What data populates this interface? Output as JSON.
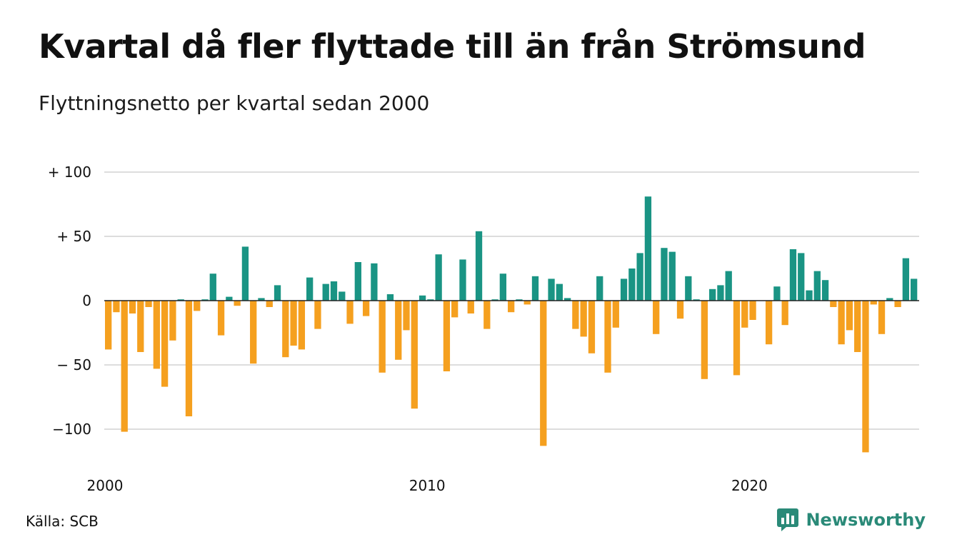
{
  "title": "Kvartal då fler flyttade till än från Strömsund",
  "subtitle": "Flyttningsnetto per kvartal sedan 2000",
  "source": "Källa: SCB",
  "brand": {
    "name": "Newsworthy",
    "icon": "newsworthy-logo-icon"
  },
  "colors": {
    "positive": "#1a9484",
    "negative": "#f5a01f",
    "grid": "#dddddd",
    "zero_line": "#222222"
  },
  "chart_data": {
    "type": "bar",
    "title": "Kvartal då fler flyttade till än från Strömsund",
    "subtitle": "Flyttningsnetto per kvartal sedan 2000",
    "ylim": [
      -120,
      100
    ],
    "yticks": [
      {
        "value": 100,
        "label": "+ 100"
      },
      {
        "value": 50,
        "label": "+  50"
      },
      {
        "value": 0,
        "label": "0"
      },
      {
        "value": -50,
        "label": "− 50"
      },
      {
        "value": -100,
        "label": "−100"
      }
    ],
    "xticks": [
      {
        "index": 0,
        "label": "2000"
      },
      {
        "index": 40,
        "label": "2010"
      },
      {
        "index": 80,
        "label": "2020"
      }
    ],
    "grid": true,
    "start": "2000 Q1",
    "values": [
      -38,
      -9,
      -102,
      -10,
      -40,
      -5,
      -53,
      -67,
      -31,
      1,
      -90,
      -8,
      1,
      21,
      -27,
      3,
      -4,
      42,
      -49,
      2,
      -5,
      12,
      -44,
      -35,
      -38,
      18,
      -22,
      13,
      15,
      7,
      -18,
      30,
      -12,
      29,
      -56,
      5,
      -46,
      -23,
      -84,
      4,
      1,
      36,
      -55,
      -13,
      32,
      -10,
      54,
      -22,
      1,
      21,
      -9,
      1,
      -3,
      19,
      -113,
      17,
      13,
      2,
      -22,
      -28,
      -41,
      19,
      -56,
      -21,
      17,
      25,
      37,
      81,
      -26,
      41,
      38,
      -14,
      19,
      1,
      -61,
      9,
      12,
      23,
      -58,
      -21,
      -15,
      0,
      -34,
      11,
      -19,
      40,
      37,
      8,
      23,
      16,
      -5,
      -34,
      -23,
      -40,
      -118,
      -3,
      -26,
      2,
      -5,
      33,
      17
    ]
  }
}
